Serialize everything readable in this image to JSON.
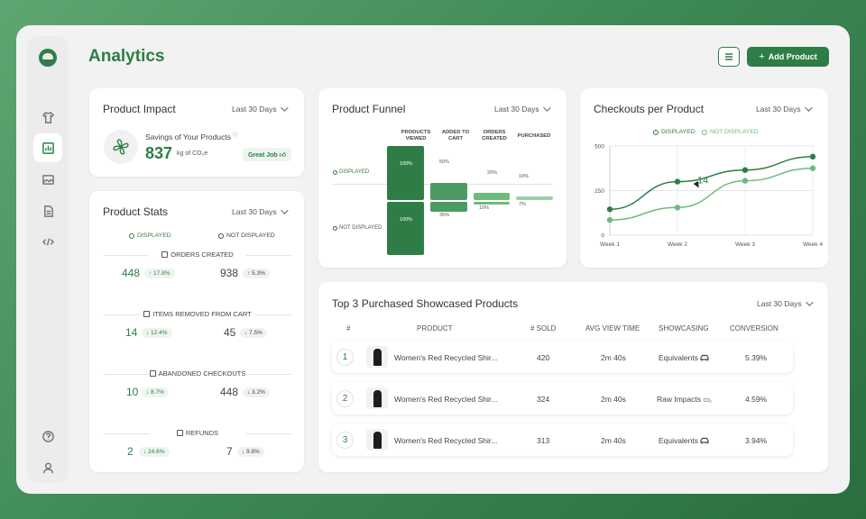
{
  "page": {
    "title": "Analytics"
  },
  "header": {
    "add_product_label": "Add Product"
  },
  "sidebar": {
    "items": [
      {
        "icon": "shirt-icon"
      },
      {
        "icon": "bar-chart-icon",
        "active": true
      },
      {
        "icon": "image-icon"
      },
      {
        "icon": "document-icon"
      },
      {
        "icon": "code-icon"
      }
    ],
    "bottom": [
      {
        "icon": "help-icon"
      },
      {
        "icon": "user-icon"
      }
    ]
  },
  "impact": {
    "title": "Product Impact",
    "range": "Last 30 Days",
    "label": "Savings of Your Products",
    "value": "837",
    "unit": "kg of CO₂e",
    "badge": "Great Job"
  },
  "stats": {
    "title": "Product Stats",
    "range": "Last 30 Days",
    "legend_displayed": "DISPLAYED",
    "legend_not_displayed": "NOT DISPLAYED",
    "sections": [
      {
        "label": "ORDERS CREATED",
        "displayed": "448",
        "displayed_change": "↑ 17.8%",
        "not_displayed": "938",
        "not_displayed_change": "↑ 5.3%"
      },
      {
        "label": "ITEMS REMOVED FROM CART",
        "displayed": "14",
        "displayed_change": "↓ 12.4%",
        "not_displayed": "45",
        "not_displayed_change": "↓ 7.5%"
      },
      {
        "label": "ABANDONED CHECKOUTS",
        "displayed": "10",
        "displayed_change": "↓ 8.7%",
        "not_displayed": "448",
        "not_displayed_change": "↓ 3.2%"
      },
      {
        "label": "REFUNDS",
        "displayed": "2",
        "displayed_change": "↓ 24.6%",
        "not_displayed": "7",
        "not_displayed_change": "↓ 9.8%"
      }
    ]
  },
  "funnel": {
    "title": "Product Funnel",
    "range": "Last 30 Days",
    "columns": [
      "PRODUCTS VIEWED",
      "ADDED TO CART",
      "ORDERS CREATED",
      "PURCHASED"
    ],
    "label_displayed": "DISPLAYED",
    "label_not_displayed": "NOT DISPLAYED",
    "displayed": [
      "100%",
      "50%",
      "20%",
      "10%"
    ],
    "not_displayed": [
      "100%",
      "35%",
      "10%",
      "7%"
    ]
  },
  "checkouts": {
    "title": "Checkouts per Product",
    "range": "Last 30 Days",
    "legend_displayed": "DISPLAYED",
    "legend_not_displayed": "NOT DISPLAYED",
    "annotation": "14"
  },
  "chart_data": {
    "type": "line",
    "categories": [
      "Week 1",
      "Week 2",
      "Week 3",
      "Week 4"
    ],
    "series": [
      {
        "name": "DISPLAYED",
        "values": [
          145,
          300,
          365,
          440
        ]
      },
      {
        "name": "NOT DISPLAYED",
        "values": [
          85,
          155,
          305,
          375
        ]
      }
    ],
    "yticks": [
      0,
      250,
      500
    ],
    "ylim": [
      0,
      500
    ],
    "grid": true,
    "legend": "top-center",
    "colors": {
      "displayed": "#2f7d46",
      "not_displayed": "#6dbb7c"
    }
  },
  "top_products": {
    "title": "Top 3 Purchased Showcased Products",
    "range": "Last 30 Days",
    "columns": [
      "#",
      "PRODUCT",
      "# SOLD",
      "AVG VIEW TIME",
      "SHOWCASING",
      "CONVERSION"
    ],
    "rows": [
      {
        "rank": "1",
        "product": "Women's Red Recycled Shir...",
        "sold": "420",
        "view_time": "2m 40s",
        "showcasing": "Equivalents",
        "showcasing_icon": "car-icon",
        "conversion": "5.39%"
      },
      {
        "rank": "2",
        "product": "Women's Red Recycled Shir...",
        "sold": "324",
        "view_time": "2m 40s",
        "showcasing": "Raw Impacts",
        "showcasing_icon": "co2-icon",
        "conversion": "4.59%"
      },
      {
        "rank": "3",
        "product": "Women's Red Recycled Shir...",
        "sold": "313",
        "view_time": "2m 40s",
        "showcasing": "Equivalents",
        "showcasing_icon": "car-icon",
        "conversion": "3.94%"
      }
    ]
  },
  "colors": {
    "brand": "#2f7d46",
    "light_green": "#6dbb7c",
    "background": "#f2f2f2"
  }
}
